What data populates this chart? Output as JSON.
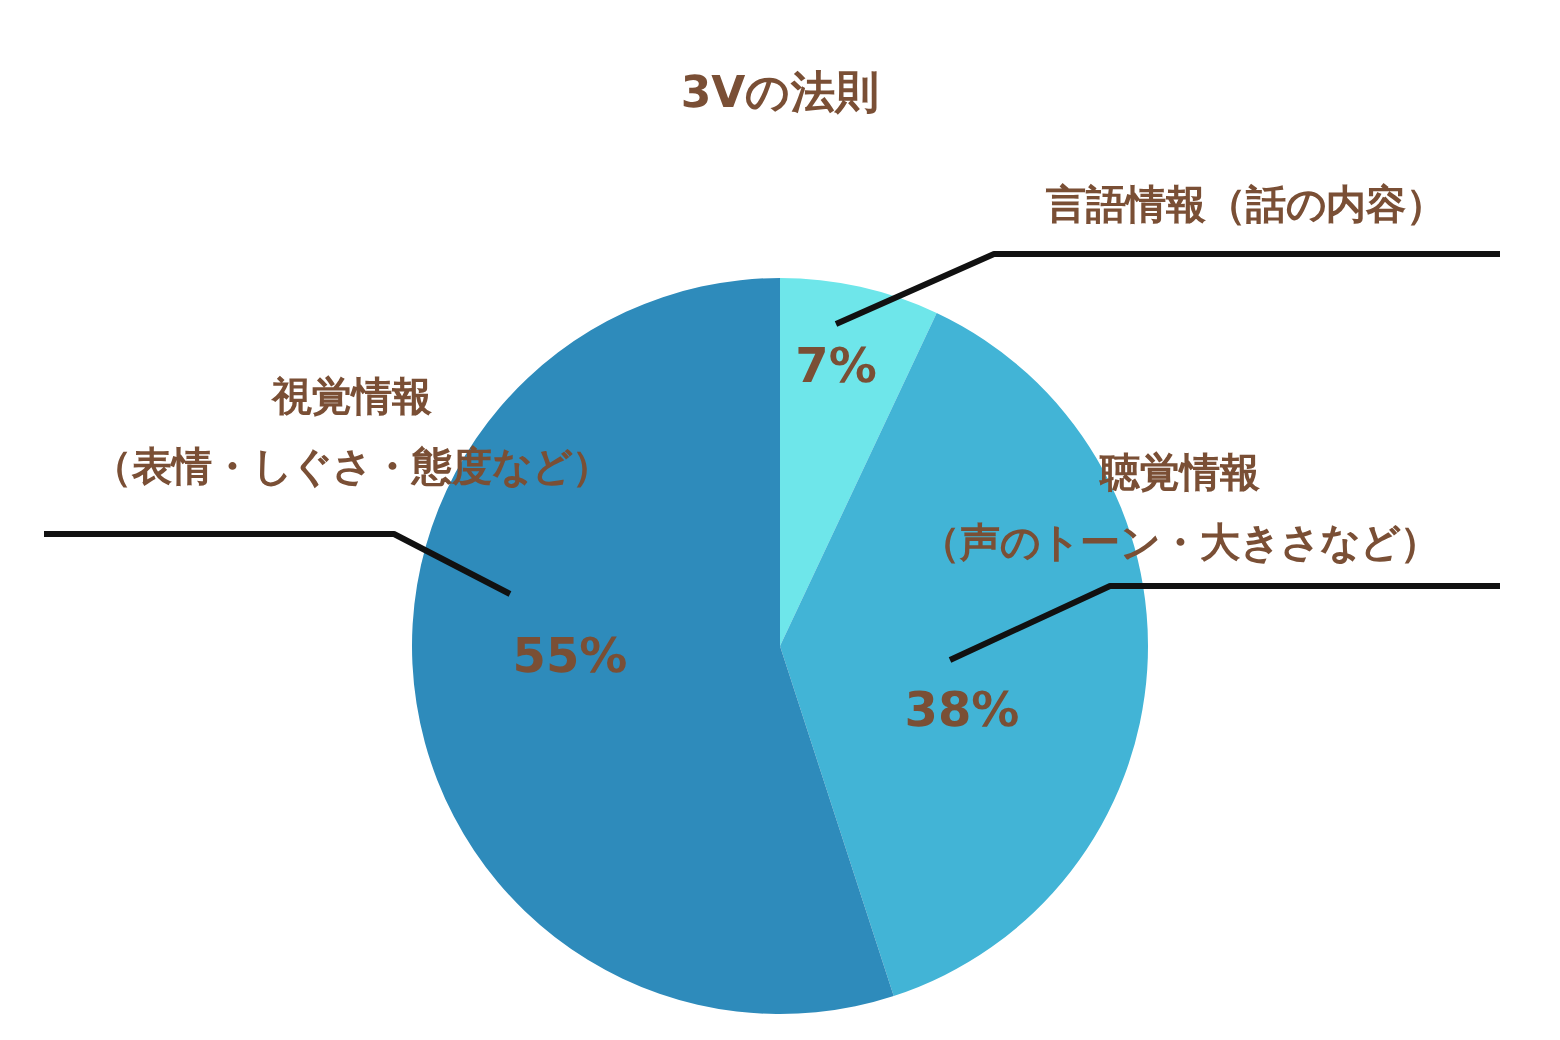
{
  "chart_data": {
    "type": "pie",
    "title": "3Vの法則",
    "categories": [
      "言語情報（話の内容）",
      "聴覚情報（声のトーン・大きさなど）",
      "視覚情報（表情・しぐさ・態度など）"
    ],
    "values": [
      7,
      38,
      55
    ],
    "colors": [
      "#6ee6ea",
      "#42b4d6",
      "#2e8bbb"
    ],
    "value_labels": [
      "7%",
      "38%",
      "55%"
    ],
    "legend": false
  }
}
